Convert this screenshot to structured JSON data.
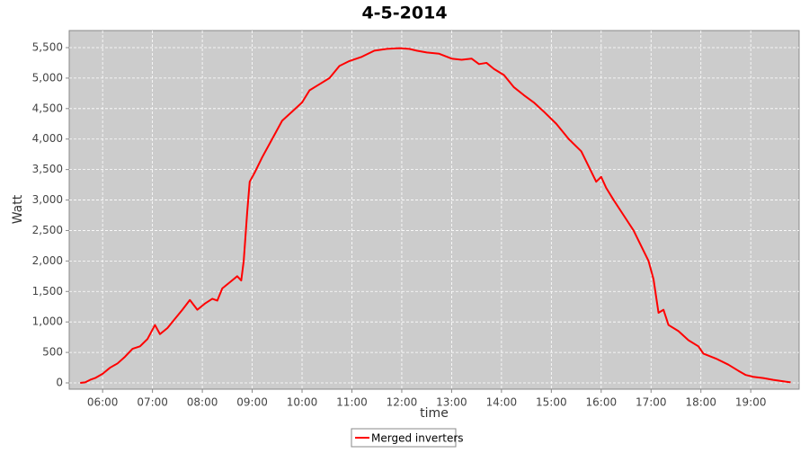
{
  "chart_data": {
    "type": "line",
    "title": "4-5-2014",
    "x_label": "time",
    "y_label": "Watt",
    "x": [
      5.55,
      5.65,
      5.75,
      5.85,
      6.0,
      6.15,
      6.3,
      6.45,
      6.6,
      6.75,
      6.9,
      7.05,
      7.15,
      7.3,
      7.45,
      7.6,
      7.75,
      7.9,
      8.05,
      8.2,
      8.3,
      8.4,
      8.55,
      8.7,
      8.78,
      8.83,
      8.9,
      8.95,
      9.05,
      9.2,
      9.4,
      9.6,
      9.8,
      10.0,
      10.15,
      10.35,
      10.55,
      10.75,
      10.95,
      11.2,
      11.45,
      11.7,
      11.95,
      12.15,
      12.3,
      12.5,
      12.75,
      13.0,
      13.2,
      13.4,
      13.55,
      13.7,
      13.85,
      14.05,
      14.25,
      14.45,
      14.65,
      14.85,
      15.1,
      15.35,
      15.6,
      15.75,
      15.9,
      16.0,
      16.1,
      16.25,
      16.45,
      16.65,
      16.8,
      16.95,
      17.05,
      17.15,
      17.25,
      17.35,
      17.55,
      17.75,
      17.95,
      18.05,
      18.3,
      18.55,
      18.75,
      18.9,
      19.05,
      19.25,
      19.45,
      19.7,
      19.8
    ],
    "series": [
      {
        "name": "Merged inverters",
        "color": "#ff0000",
        "values": [
          0,
          10,
          50,
          80,
          150,
          250,
          320,
          430,
          560,
          600,
          720,
          950,
          800,
          900,
          1050,
          1200,
          1360,
          1200,
          1300,
          1380,
          1350,
          1550,
          1650,
          1750,
          1680,
          2000,
          2800,
          3300,
          3450,
          3700,
          4000,
          4300,
          4450,
          4600,
          4800,
          4900,
          5000,
          5200,
          5280,
          5350,
          5450,
          5480,
          5490,
          5480,
          5450,
          5420,
          5400,
          5320,
          5300,
          5320,
          5230,
          5250,
          5150,
          5050,
          4850,
          4720,
          4600,
          4450,
          4250,
          4000,
          3800,
          3550,
          3300,
          3380,
          3200,
          3000,
          2750,
          2500,
          2250,
          2000,
          1700,
          1150,
          1200,
          950,
          850,
          700,
          600,
          480,
          400,
          300,
          200,
          130,
          100,
          80,
          50,
          20,
          10
        ]
      }
    ],
    "xlim": [
      5.33,
      19.97
    ],
    "ylim": [
      -103,
      5780
    ],
    "xticks": [
      {
        "value": 6,
        "label": "06:00"
      },
      {
        "value": 7,
        "label": "07:00"
      },
      {
        "value": 8,
        "label": "08:00"
      },
      {
        "value": 9,
        "label": "09:00"
      },
      {
        "value": 10,
        "label": "10:00"
      },
      {
        "value": 11,
        "label": "11:00"
      },
      {
        "value": 12,
        "label": "12:00"
      },
      {
        "value": 13,
        "label": "13:00"
      },
      {
        "value": 14,
        "label": "14:00"
      },
      {
        "value": 15,
        "label": "15:00"
      },
      {
        "value": 16,
        "label": "16:00"
      },
      {
        "value": 17,
        "label": "17:00"
      },
      {
        "value": 18,
        "label": "18:00"
      },
      {
        "value": 19,
        "label": "19:00"
      }
    ],
    "yticks": [
      0,
      500,
      {
        "value": 1000,
        "label": "1,000"
      },
      {
        "value": 1500,
        "label": "1,500"
      },
      {
        "value": 2000,
        "label": "2,000"
      },
      {
        "value": 2500,
        "label": "2,500"
      },
      {
        "value": 3000,
        "label": "3,000"
      },
      {
        "value": 3500,
        "label": "3,500"
      },
      {
        "value": 4000,
        "label": "4,000"
      },
      {
        "value": 4500,
        "label": "4,500"
      },
      {
        "value": 5000,
        "label": "5,000"
      },
      {
        "value": 5500,
        "label": "5,500"
      }
    ],
    "grid": true
  }
}
